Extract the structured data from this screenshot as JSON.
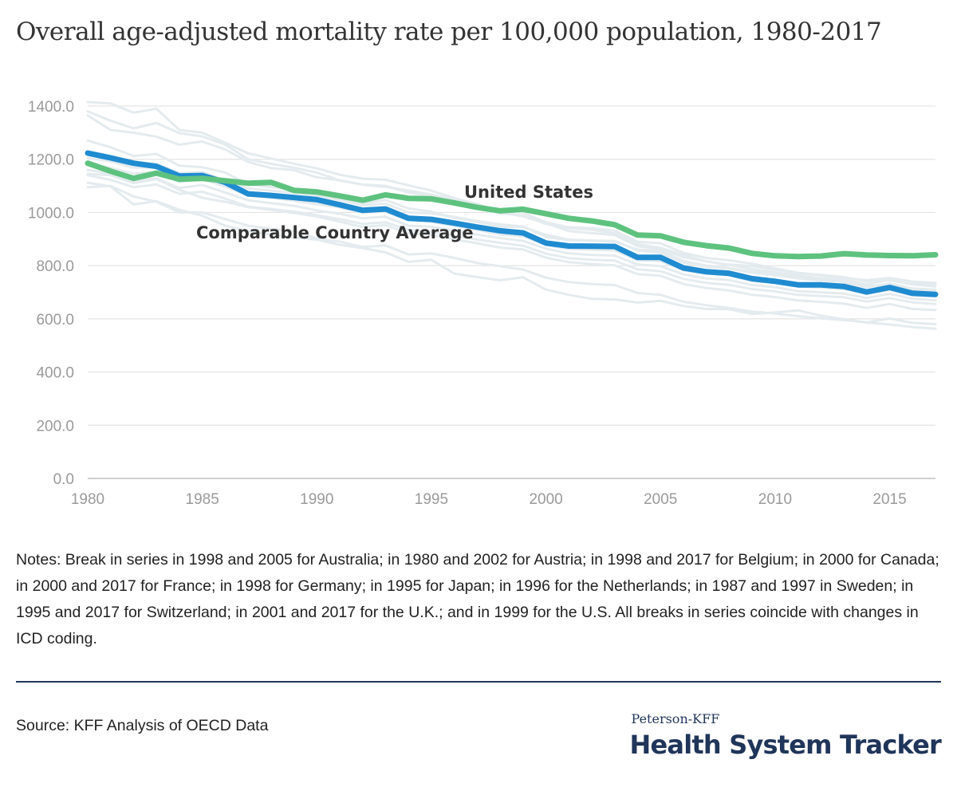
{
  "chart_data": {
    "type": "line",
    "title": "Overall age-adjusted mortality rate per 100,000 population, 1980-2017",
    "x": [
      1980,
      1981,
      1982,
      1983,
      1984,
      1985,
      1986,
      1987,
      1988,
      1989,
      1990,
      1991,
      1992,
      1993,
      1994,
      1995,
      1996,
      1997,
      1998,
      1999,
      2000,
      2001,
      2002,
      2003,
      2004,
      2005,
      2006,
      2007,
      2008,
      2009,
      2010,
      2011,
      2012,
      2013,
      2014,
      2015,
      2016,
      2017
    ],
    "xlim": [
      1980,
      2017
    ],
    "ylim": [
      0,
      1400
    ],
    "x_ticks": [
      "1980",
      "1985",
      "1990",
      "1995",
      "2000",
      "2005",
      "2010",
      "2015"
    ],
    "y_ticks": [
      "0.0",
      "200.0",
      "400.0",
      "600.0",
      "800.0",
      "1000.0",
      "1200.0",
      "1400.0"
    ],
    "grid": true,
    "series": [
      {
        "name": "United States",
        "color": "#5ec27f",
        "values": [
          1185,
          1155,
          1128,
          1148,
          1125,
          1128,
          1119,
          1110,
          1113,
          1083,
          1077,
          1062,
          1046,
          1066,
          1053,
          1051,
          1036,
          1019,
          1006,
          1012,
          995,
          978,
          968,
          954,
          915,
          912,
          888,
          875,
          866,
          846,
          837,
          834,
          836,
          845,
          840,
          838,
          837,
          841
        ]
      },
      {
        "name": "Comparable Country Average",
        "color": "#1f8bd0",
        "values": [
          1223,
          1205,
          1185,
          1173,
          1137,
          1139,
          1113,
          1070,
          1064,
          1056,
          1048,
          1029,
          1008,
          1013,
          978,
          974,
          960,
          945,
          931,
          923,
          885,
          874,
          873,
          872,
          831,
          831,
          791,
          777,
          771,
          751,
          741,
          728,
          728,
          722,
          701,
          718,
          696,
          692
        ]
      }
    ],
    "background_series_color": "#e4ebee",
    "background_series": [
      [
        1415,
        1410,
        1375,
        1390,
        1310,
        1300,
        1262,
        1222,
        1203,
        1183,
        1166,
        1142,
        1127,
        1123,
        1102,
        1082,
        1054,
        1032,
        1003,
        985,
        960,
        930,
        922,
        915,
        873,
        862,
        832,
        816,
        803,
        787,
        775,
        764,
        750,
        738,
        726,
        721,
        710,
        705
      ],
      [
        1380,
        1345,
        1316,
        1336,
        1298,
        1286,
        1255,
        1200,
        1183,
        1168,
        1150,
        1120,
        1104,
        1096,
        1083,
        1067,
        1048,
        1023,
        1008,
        999,
        963,
        944,
        941,
        931,
        890,
        884,
        848,
        829,
        820,
        807,
        790,
        773,
        765,
        757,
        740,
        745,
        729,
        722
      ],
      [
        1365,
        1310,
        1300,
        1285,
        1255,
        1267,
        1237,
        1190,
        1167,
        1159,
        1132,
        1121,
        1105,
        1100,
        1074,
        1063,
        1050,
        1020,
        997,
        988,
        957,
        941,
        935,
        921,
        881,
        867,
        840,
        816,
        804,
        798,
        785,
        772,
        762,
        755,
        745,
        754,
        740,
        735
      ],
      [
        1270,
        1245,
        1212,
        1220,
        1176,
        1170,
        1150,
        1106,
        1095,
        1086,
        1073,
        1048,
        1035,
        1047,
        1015,
        1003,
        980,
        964,
        947,
        945,
        916,
        898,
        894,
        890,
        860,
        856,
        818,
        800,
        791,
        777,
        771,
        760,
        752,
        748,
        729,
        747,
        730,
        731
      ],
      [
        1228,
        1212,
        1188,
        1183,
        1148,
        1152,
        1120,
        1090,
        1082,
        1074,
        1063,
        1047,
        1027,
        1033,
        1000,
        996,
        983,
        968,
        955,
        947,
        908,
        896,
        894,
        893,
        857,
        848,
        811,
        796,
        789,
        773,
        764,
        752,
        745,
        738,
        719,
        733,
        714,
        710
      ],
      [
        1205,
        1192,
        1168,
        1170,
        1130,
        1145,
        1118,
        1073,
        1068,
        1055,
        1045,
        1030,
        1016,
        1020,
        985,
        975,
        962,
        948,
        930,
        925,
        888,
        876,
        872,
        872,
        834,
        827,
        795,
        779,
        772,
        753,
        744,
        733,
        728,
        721,
        703,
        718,
        699,
        695
      ],
      [
        1183,
        1168,
        1146,
        1152,
        1115,
        1125,
        1097,
        1065,
        1055,
        1044,
        1031,
        1019,
        1000,
        1003,
        972,
        965,
        950,
        934,
        917,
        910,
        878,
        862,
        860,
        857,
        821,
        817,
        782,
        770,
        763,
        742,
        736,
        722,
        717,
        712,
        696,
        708,
        688,
        684
      ],
      [
        1160,
        1146,
        1120,
        1128,
        1092,
        1103,
        1075,
        1046,
        1035,
        1025,
        1008,
        995,
        978,
        984,
        950,
        946,
        932,
        917,
        904,
        893,
        864,
        846,
        840,
        838,
        804,
        798,
        767,
        752,
        746,
        727,
        719,
        704,
        700,
        695,
        678,
        694,
        675,
        670
      ],
      [
        1140,
        1122,
        1095,
        1105,
        1070,
        1078,
        1052,
        1022,
        1013,
        1003,
        990,
        975,
        957,
        963,
        934,
        927,
        913,
        898,
        886,
        875,
        845,
        828,
        822,
        819,
        786,
        779,
        750,
        735,
        728,
        712,
        703,
        690,
        686,
        681,
        665,
        678,
        662,
        656
      ],
      [
        1112,
        1098,
        1030,
        1042,
        1010,
        988,
        950,
        930,
        918,
        906,
        898,
        878,
        866,
        850,
        814,
        822,
        770,
        757,
        745,
        756,
        710,
        690,
        675,
        673,
        661,
        668,
        648,
        637,
        636,
        618,
        624,
        632,
        612,
        598,
        586,
        579,
        569,
        563
      ],
      [
        1095,
        1100,
        1060,
        1040,
        1000,
        1000,
        975,
        950,
        938,
        930,
        902,
        890,
        870,
        876,
        842,
        846,
        829,
        810,
        798,
        785,
        755,
        738,
        731,
        727,
        697,
        690,
        664,
        651,
        641,
        627,
        620,
        610,
        602,
        595,
        587,
        601,
        585,
        580
      ],
      [
        1145,
        1140,
        1110,
        1125,
        1085,
        1055,
        1040,
        1020,
        1010,
        998,
        985,
        965,
        945,
        952,
        921,
        915,
        899,
        884,
        868,
        861,
        830,
        813,
        806,
        801,
        768,
        762,
        731,
        716,
        707,
        690,
        682,
        669,
        664,
        657,
        641,
        656,
        637,
        633
      ]
    ]
  },
  "labels": {
    "us": "United States",
    "avg": "Comparable Country Average"
  },
  "notes": "Notes: Break in series in 1998 and 2005 for Australia; in 1980 and 2002 for Austria; in 1998 and 2017 for Belgium; in 2000 for Canada; in 2000 and 2017 for France; in 1998 for Germany; in 1995 for Japan; in 1996  for the Netherlands; in 1987 and 1997 in Sweden; in 1995 and 2017 for Switzerland; in 2001 and 2017  for the U.K.;  and in 1999 for the U.S. All breaks in series coincide with changes in ICD coding.",
  "source": "Source: KFF Analysis of OECD Data",
  "brand": {
    "top": "Peterson-KFF",
    "main": "Health System Tracker"
  }
}
